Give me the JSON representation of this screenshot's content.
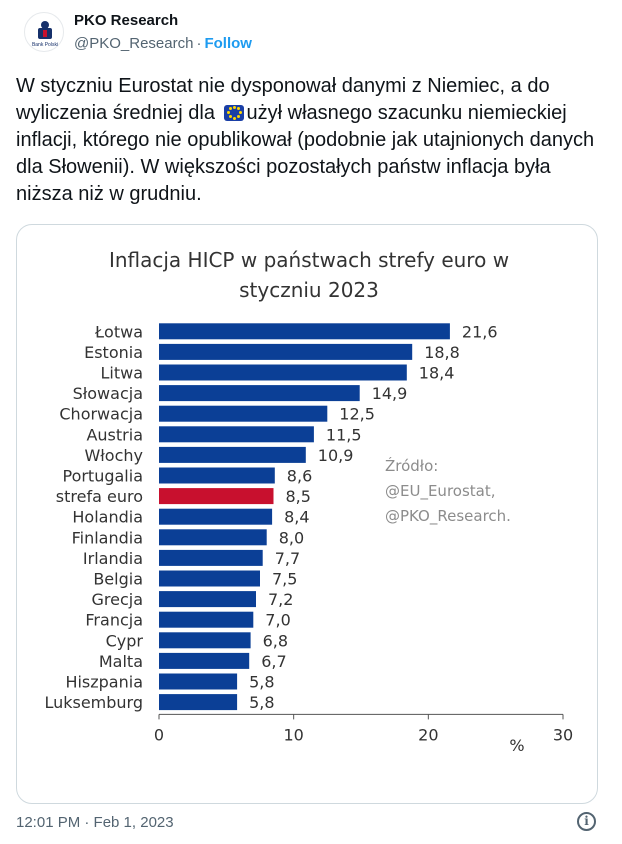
{
  "author": {
    "name": "PKO Research",
    "handle": "@PKO_Research",
    "separator": "·",
    "follow_label": "Follow",
    "logo_text": "Bank Polski"
  },
  "tweet": {
    "text_before_flag": "W styczniu Eurostat nie dysponował danymi z Niemiec, a do wyliczenia średniej dla ",
    "text_after_flag": "użył własnego szacunku niemieckiej inflacji, którego nie opublikował (podobnie jak utajnionych danych dla Słowenii). W większości pozostałych państw inflacja była niższa niż w grudniu.",
    "flag_icon": "eu-flag-icon",
    "timestamp": "12:01 PM · Feb 1, 2023",
    "info_icon": "info-icon"
  },
  "colors": {
    "bar": "#0b3f96",
    "highlight": "#c8102e",
    "source_text": "#8c8c8c"
  },
  "chart_data": {
    "type": "bar",
    "orientation": "horizontal",
    "title_lines": [
      "Inflacja HICP w państwach strefy euro w",
      "styczniu 2023"
    ],
    "categories": [
      "Łotwa",
      "Estonia",
      "Litwa",
      "Słowacja",
      "Chorwacja",
      "Austria",
      "Włochy",
      "Portugalia",
      "strefa euro",
      "Holandia",
      "Finlandia",
      "Irlandia",
      "Belgia",
      "Grecja",
      "Francja",
      "Cypr",
      "Malta",
      "Hiszpania",
      "Luksemburg"
    ],
    "values": [
      21.6,
      18.8,
      18.4,
      14.9,
      12.5,
      11.5,
      10.9,
      8.6,
      8.5,
      8.4,
      8.0,
      7.7,
      7.5,
      7.2,
      7.0,
      6.8,
      6.7,
      5.8,
      5.8
    ],
    "value_labels": [
      "21,6",
      "18,8",
      "18,4",
      "14,9",
      "12,5",
      "11,5",
      "10,9",
      "8,6",
      "8,5",
      "8,4",
      "8,0",
      "7,7",
      "7,5",
      "7,2",
      "7,0",
      "6,8",
      "6,7",
      "5,8",
      "5,8"
    ],
    "highlight_category": "strefa euro",
    "xlim": [
      0,
      30
    ],
    "xticks": [
      0,
      10,
      20,
      30
    ],
    "xtick_labels": [
      "0",
      "10",
      "20",
      "30"
    ],
    "unit": "%",
    "source_lines": [
      "Źródło:",
      "@EU_Eurostat,",
      "@PKO_Research."
    ]
  }
}
